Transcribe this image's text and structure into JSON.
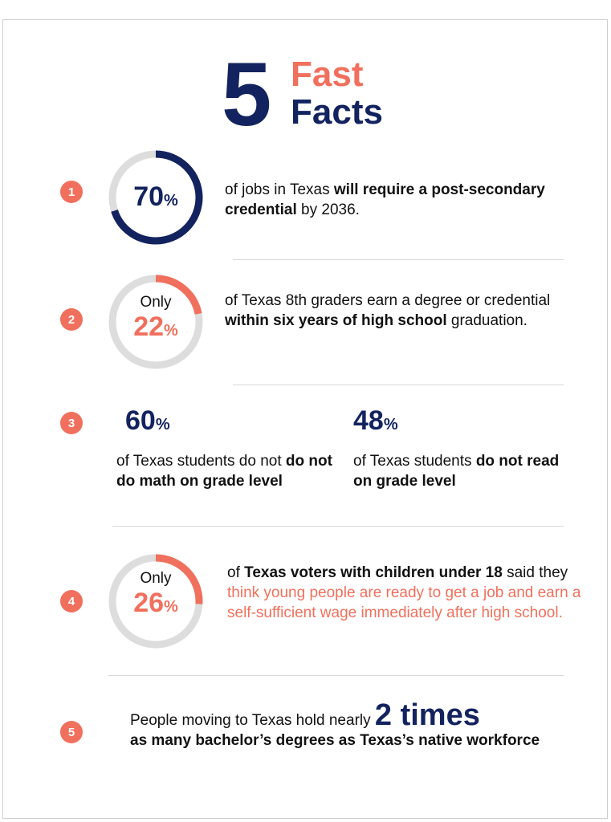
{
  "title": {
    "number": "5",
    "line1": "Fast",
    "line2": "Facts"
  },
  "facts": [
    {
      "index": "1",
      "ring_value": "70",
      "ring_unit": "%",
      "ring_fraction": 0.7,
      "text_pre": "of jobs in Texas ",
      "text_bold": "will require a post-secondary credential",
      "text_post": " by 2036."
    },
    {
      "index": "2",
      "ring_prefix": "Only",
      "ring_value": "22",
      "ring_unit": "%",
      "ring_fraction": 0.22,
      "text_pre": "of Texas 8th graders earn a degree or credential ",
      "text_bold": "within six years of high school",
      "text_post": " graduation."
    },
    {
      "index": "3",
      "left_value": "60",
      "left_unit": "%",
      "left_text_pre": "of Texas students do not ",
      "left_text_bold": "do not do math on grade level",
      "right_value": "48",
      "right_unit": "%",
      "right_text_pre": "of Texas students ",
      "right_text_bold": "do not read on grade level"
    },
    {
      "index": "4",
      "ring_prefix": "Only",
      "ring_value": "26",
      "ring_unit": "%",
      "ring_fraction": 0.26,
      "text_pre": "of ",
      "text_bold": "Texas voters with children under 18",
      "text_mid": " said they ",
      "text_highlight": "think young people are ready to get a job and earn a self-sufficient wage immediately after high school."
    },
    {
      "index": "5",
      "text_pre": "People moving to Texas hold nearly ",
      "text_big": "2 times",
      "text_bold": "as many bachelor’s degrees as Texas’s native workforce"
    }
  ],
  "colors": {
    "navy": "#13235f",
    "coral": "#f0705d",
    "ring_track": "#dddddd"
  }
}
